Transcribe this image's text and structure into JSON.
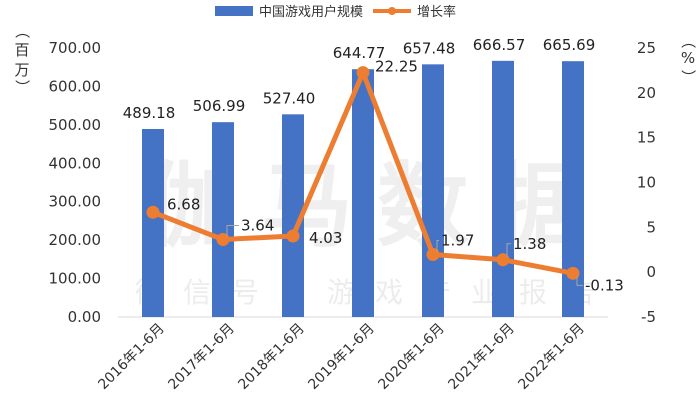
{
  "chart_data": {
    "type": "bar",
    "categories": [
      "2016年1-6月",
      "2017年1-6月",
      "2018年1-6月",
      "2019年1-6月",
      "2020年1-6月",
      "2021年1-6月",
      "2022年1-6月"
    ],
    "series": [
      {
        "name": "中国游戏用户规模",
        "type": "bar",
        "axis": "left",
        "color": "#4472C4",
        "values": [
          489.18,
          506.99,
          527.4,
          644.77,
          657.48,
          666.57,
          665.69
        ],
        "labels": [
          "489.18",
          "506.99",
          "527.40",
          "644.77",
          "657.48",
          "666.57",
          "665.69"
        ]
      },
      {
        "name": "增长率",
        "type": "line",
        "axis": "right",
        "color": "#ED7D31",
        "values": [
          6.68,
          3.64,
          4.03,
          22.25,
          1.97,
          1.38,
          -0.13
        ],
        "labels": [
          "6.68",
          "3.64",
          "4.03",
          "22.25",
          "1.97",
          "1.38",
          "-0.13"
        ]
      }
    ],
    "left_axis": {
      "label": [
        "（",
        "百",
        "万",
        "）"
      ],
      "ylim": [
        0,
        700
      ],
      "ticks": [
        "700.00",
        "600.00",
        "500.00",
        "400.00",
        "300.00",
        "200.00",
        "100.00",
        "0.00"
      ]
    },
    "right_axis": {
      "label": [
        "（",
        "%",
        "）"
      ],
      "ylim": [
        -5,
        25
      ],
      "ticks": [
        "25",
        "20",
        "15",
        "10",
        "5",
        "0",
        "-5"
      ]
    },
    "legend": {
      "position": "top"
    },
    "grid": false,
    "watermark": {
      "main": "伽马数据",
      "sub": "微信号：游戏产业报告"
    }
  }
}
